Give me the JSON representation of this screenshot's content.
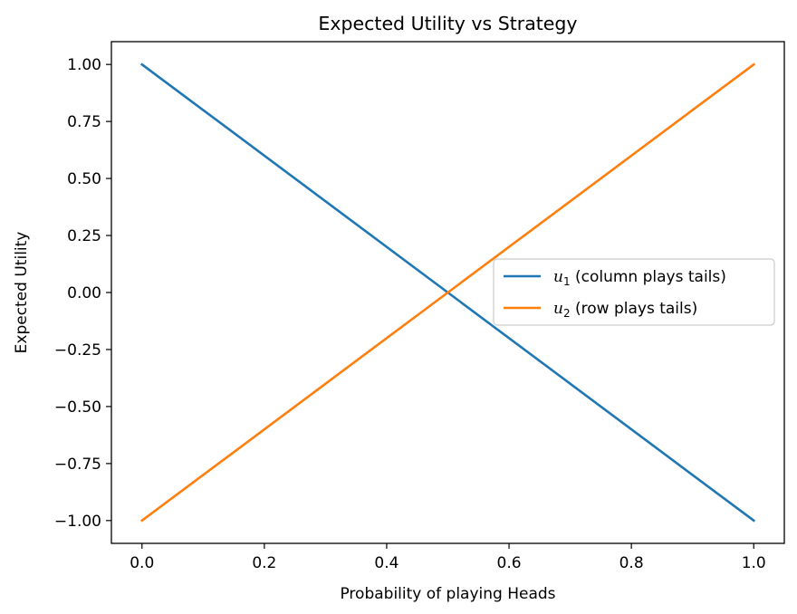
{
  "chart_data": {
    "type": "line",
    "title": "Expected Utility vs Strategy",
    "xlabel": "Probability of playing Heads",
    "ylabel": "Expected Utility",
    "xlim": [
      -0.05,
      1.05
    ],
    "ylim": [
      -1.1,
      1.1
    ],
    "xticks": [
      0.0,
      0.2,
      0.4,
      0.6,
      0.8,
      1.0
    ],
    "xtick_labels": [
      "0.0",
      "0.2",
      "0.4",
      "0.6",
      "0.8",
      "1.0"
    ],
    "yticks": [
      1.0,
      0.75,
      0.5,
      0.25,
      0.0,
      -0.25,
      -0.5,
      -0.75,
      -1.0
    ],
    "ytick_labels": [
      "1.00",
      "0.75",
      "0.50",
      "0.25",
      "0.00",
      "−0.25",
      "−0.50",
      "−0.75",
      "−1.00"
    ],
    "grid": false,
    "legend_position": "center-right",
    "series": [
      {
        "name_math": "u",
        "name_sub": "1",
        "name_text": " (column plays tails)",
        "color": "#1f77b4",
        "x": [
          0.0,
          1.0
        ],
        "y": [
          1.0,
          -1.0
        ]
      },
      {
        "name_math": "u",
        "name_sub": "2",
        "name_text": " (row plays tails)",
        "color": "#ff7f0e",
        "x": [
          0.0,
          1.0
        ],
        "y": [
          -1.0,
          1.0
        ]
      }
    ]
  }
}
